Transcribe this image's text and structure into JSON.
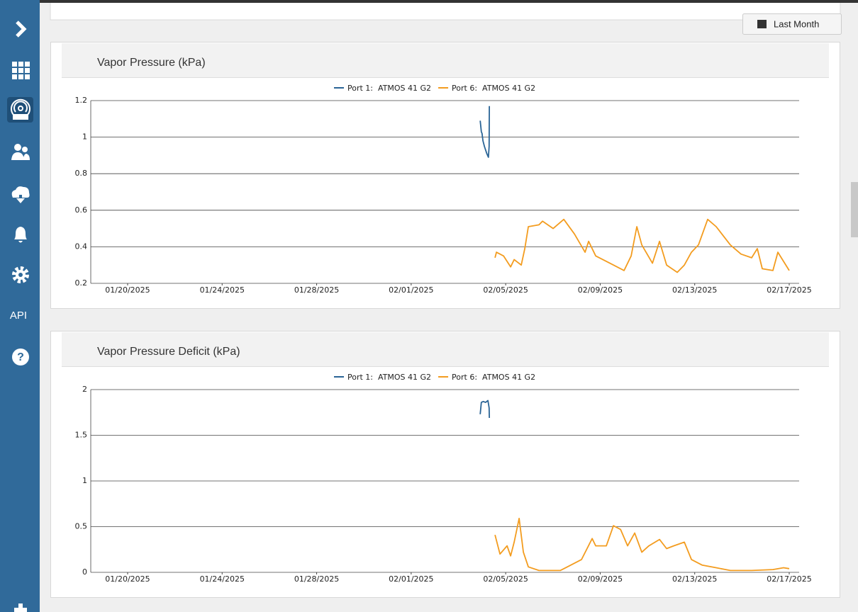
{
  "sidebar": {
    "api_label": "API"
  },
  "toolbar": {
    "range_button": "Last Month"
  },
  "chart_data": [
    {
      "type": "line",
      "title": "Vapor Pressure (kPa)",
      "xlim": [
        18.44,
        48.42
      ],
      "xticks": [
        {
          "value": 20,
          "label": "01/20/2025"
        },
        {
          "value": 24,
          "label": "01/24/2025"
        },
        {
          "value": 28,
          "label": "01/28/2025"
        },
        {
          "value": 32,
          "label": "02/01/2025"
        },
        {
          "value": 36,
          "label": "02/05/2025"
        },
        {
          "value": 40,
          "label": "02/09/2025"
        },
        {
          "value": 44,
          "label": "02/13/2025"
        },
        {
          "value": 48,
          "label": "02/17/2025"
        }
      ],
      "ylim": [
        0.2,
        1.2
      ],
      "yticks": [
        0.2,
        0.4,
        0.6,
        0.8,
        1,
        1.2
      ],
      "grid": true,
      "series": [
        {
          "name": "Port 1:  ATMOS 41 G2",
          "color": "#2a6496",
          "x": [
            34.92,
            34.97,
            35.0,
            35.04,
            35.1,
            35.2,
            35.27,
            35.3,
            35.31
          ],
          "values": [
            1.09,
            1.03,
            1.02,
            0.98,
            0.95,
            0.91,
            0.89,
            0.95,
            1.17
          ]
        },
        {
          "name": "Port 6:  ATMOS 41 G2",
          "color": "#f39c1f",
          "x": [
            35.55,
            35.61,
            35.91,
            36.21,
            36.36,
            36.66,
            36.81,
            36.96,
            37.41,
            37.56,
            38.01,
            38.46,
            38.91,
            39.36,
            39.51,
            39.81,
            40.41,
            41.01,
            41.31,
            41.55,
            41.76,
            42.21,
            42.51,
            42.81,
            43.26,
            43.56,
            43.86,
            44.16,
            44.55,
            44.91,
            45.51,
            45.96,
            46.41,
            46.65,
            46.86,
            47.31,
            47.52,
            47.76,
            48.0
          ],
          "values": [
            0.34,
            0.37,
            0.35,
            0.29,
            0.33,
            0.3,
            0.39,
            0.51,
            0.52,
            0.54,
            0.5,
            0.55,
            0.47,
            0.37,
            0.43,
            0.35,
            0.31,
            0.27,
            0.35,
            0.51,
            0.41,
            0.31,
            0.43,
            0.3,
            0.26,
            0.3,
            0.37,
            0.41,
            0.55,
            0.51,
            0.41,
            0.36,
            0.34,
            0.39,
            0.28,
            0.27,
            0.37,
            0.32,
            0.27
          ]
        }
      ]
    },
    {
      "type": "line",
      "title": "Vapor Pressure Deficit (kPa)",
      "xlim": [
        18.44,
        48.42
      ],
      "xticks": [
        {
          "value": 20,
          "label": "01/20/2025"
        },
        {
          "value": 24,
          "label": "01/24/2025"
        },
        {
          "value": 28,
          "label": "01/28/2025"
        },
        {
          "value": 32,
          "label": "02/01/2025"
        },
        {
          "value": 36,
          "label": "02/05/2025"
        },
        {
          "value": 40,
          "label": "02/09/2025"
        },
        {
          "value": 44,
          "label": "02/13/2025"
        },
        {
          "value": 48,
          "label": "02/17/2025"
        }
      ],
      "ylim": [
        0,
        2
      ],
      "yticks": [
        0,
        0.5,
        1,
        1.5,
        2
      ],
      "grid": true,
      "series": [
        {
          "name": "Port 1:  ATMOS 41 G2",
          "color": "#2a6496",
          "x": [
            34.92,
            34.97,
            35.05,
            35.15,
            35.25,
            35.3,
            35.31
          ],
          "values": [
            1.73,
            1.86,
            1.87,
            1.86,
            1.88,
            1.8,
            1.69
          ]
        },
        {
          "name": "Port 6:  ATMOS 41 G2",
          "color": "#f39c1f",
          "x": [
            35.55,
            35.76,
            36.06,
            36.21,
            36.36,
            36.57,
            36.75,
            36.96,
            37.41,
            38.31,
            38.61,
            39.21,
            39.66,
            39.81,
            40.26,
            40.56,
            40.86,
            41.16,
            41.46,
            41.76,
            42.06,
            42.51,
            42.81,
            43.11,
            43.56,
            43.86,
            44.31,
            44.91,
            45.51,
            46.41,
            47.31,
            47.76,
            48.0
          ],
          "values": [
            0.41,
            0.2,
            0.29,
            0.18,
            0.33,
            0.59,
            0.22,
            0.06,
            0.02,
            0.02,
            0.06,
            0.14,
            0.37,
            0.29,
            0.29,
            0.51,
            0.47,
            0.29,
            0.43,
            0.22,
            0.29,
            0.36,
            0.26,
            0.29,
            0.33,
            0.14,
            0.08,
            0.05,
            0.02,
            0.02,
            0.03,
            0.05,
            0.04
          ]
        }
      ]
    }
  ]
}
